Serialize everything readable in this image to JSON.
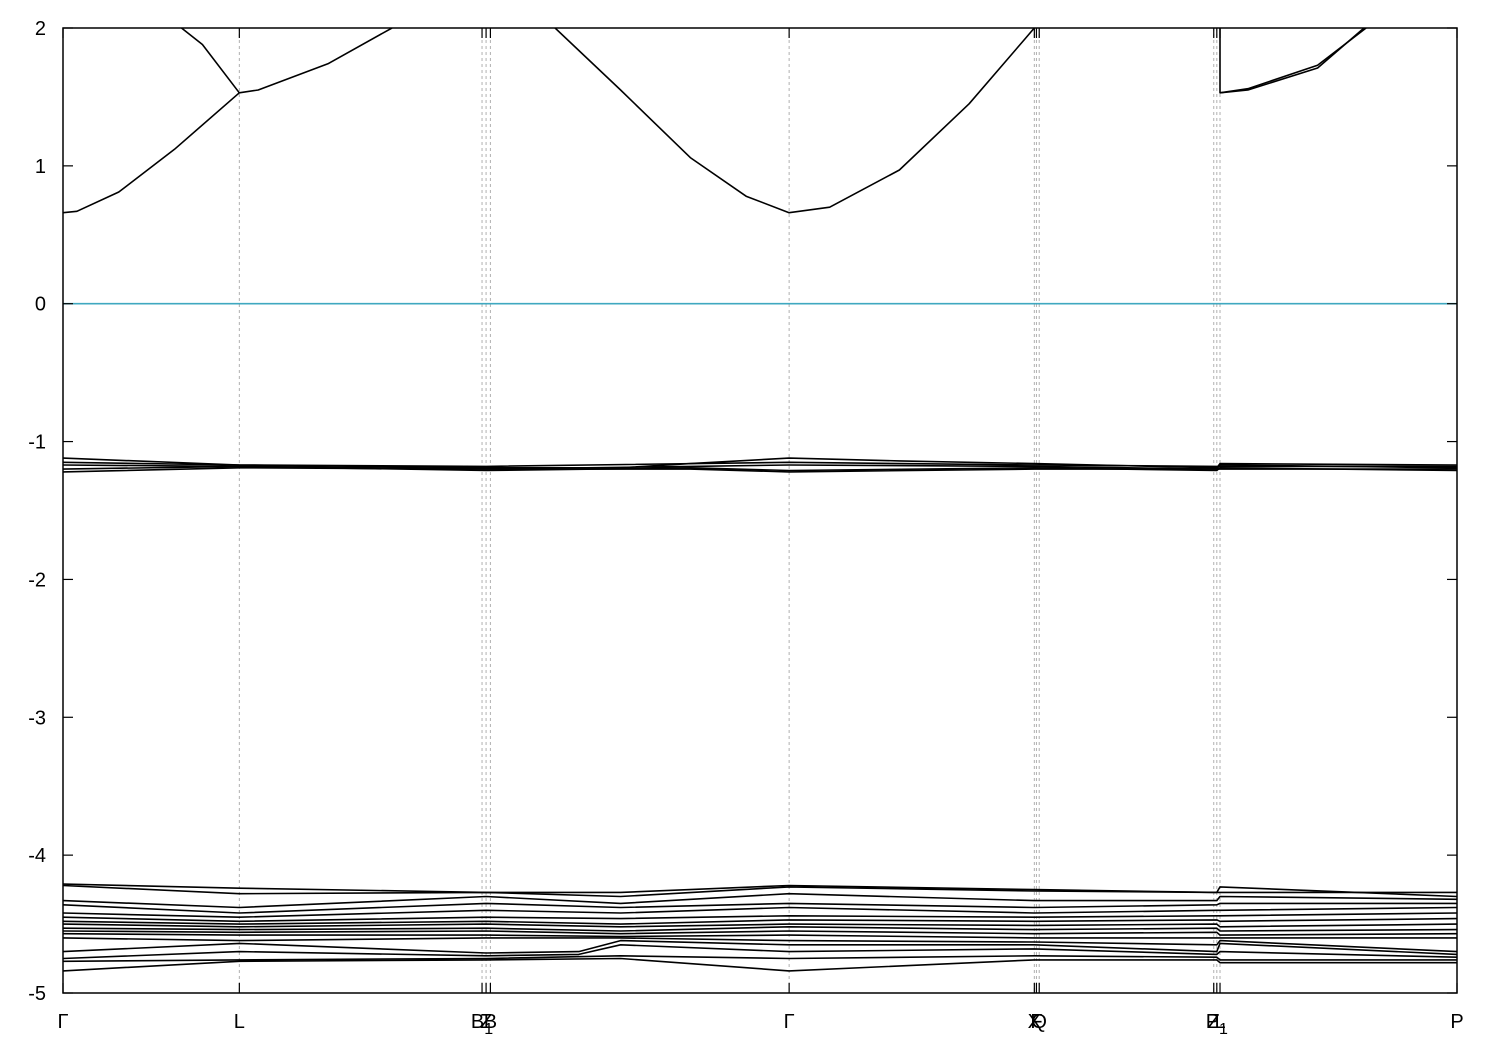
{
  "chart_data": {
    "type": "line",
    "title": "",
    "xlabel": "",
    "ylabel": "",
    "ylim": [
      -5,
      2
    ],
    "xlim": [
      0,
      1
    ],
    "grid": "vertical-dashed-at-high-symmetry-points",
    "legend": "none",
    "y_ticks": [
      {
        "value": 2,
        "label": "2"
      },
      {
        "value": 1,
        "label": "1"
      },
      {
        "value": 0,
        "label": "0"
      },
      {
        "value": -1,
        "label": "-1"
      },
      {
        "value": -2,
        "label": "-2"
      },
      {
        "value": -3,
        "label": "-3"
      },
      {
        "value": -4,
        "label": "-4"
      },
      {
        "value": -5,
        "label": "-5"
      }
    ],
    "high_symmetry_points": [
      {
        "x": 0.0,
        "label": "Γ"
      },
      {
        "x": 0.1265,
        "label": "L"
      },
      {
        "x": 0.3006,
        "label": "B1"
      },
      {
        "x": 0.3035,
        "label": "Z"
      },
      {
        "x": 0.3066,
        "label": "B"
      },
      {
        "x": 0.5209,
        "label": "Γ"
      },
      {
        "x": 0.6968,
        "label": "X"
      },
      {
        "x": 0.6983,
        "label": "F"
      },
      {
        "x": 0.7003,
        "label": "Q"
      },
      {
        "x": 0.8255,
        "label": "Z"
      },
      {
        "x": 0.8277,
        "label": "P1"
      },
      {
        "x": 0.83,
        "label": "L"
      },
      {
        "x": 1.0,
        "label": "P"
      }
    ],
    "fermi_level": {
      "value": 0,
      "color": "#3fa8c0"
    },
    "line_color": "#000000",
    "series": [
      {
        "points": [
          [
            0,
            0.66
          ],
          [
            0.01,
            0.67
          ],
          [
            0.04,
            0.81
          ],
          [
            0.08,
            1.12
          ],
          [
            0.1265,
            1.53
          ],
          [
            0.14,
            1.55
          ],
          [
            0.19,
            1.74
          ],
          [
            0.236,
            2.0
          ]
        ]
      },
      {
        "points": [
          [
            0.085,
            2.0
          ],
          [
            0.1,
            1.88
          ],
          [
            0.1265,
            1.53
          ]
        ]
      },
      {
        "points": [
          [
            0.353,
            2.0
          ],
          [
            0.4,
            1.55
          ],
          [
            0.45,
            1.06
          ],
          [
            0.49,
            0.78
          ],
          [
            0.5209,
            0.66
          ],
          [
            0.55,
            0.7
          ],
          [
            0.6,
            0.97
          ],
          [
            0.65,
            1.45
          ],
          [
            0.69,
            1.92
          ],
          [
            0.6968,
            2.0
          ]
        ]
      },
      {
        "points": [
          [
            0.83,
            2.0
          ],
          [
            0.83,
            1.53
          ],
          [
            0.85,
            1.56
          ],
          [
            0.9,
            1.73
          ],
          [
            0.9348,
            2.0
          ]
        ]
      },
      {
        "points": [
          [
            0.83,
            1.53
          ],
          [
            0.85,
            1.55
          ],
          [
            0.9,
            1.71
          ],
          [
            0.9333,
            2.0
          ]
        ]
      },
      {
        "points": [
          [
            0,
            -1.12
          ],
          [
            0.1265,
            -1.17
          ],
          [
            0.3035,
            -1.19
          ],
          [
            0.4,
            -1.19
          ],
          [
            0.45,
            -1.16
          ],
          [
            0.5209,
            -1.12
          ],
          [
            0.6,
            -1.14
          ],
          [
            0.6968,
            -1.16
          ],
          [
            0.8277,
            -1.19
          ],
          [
            0.83,
            -1.16
          ],
          [
            1.0,
            -1.17
          ]
        ]
      },
      {
        "points": [
          [
            0,
            -1.15
          ],
          [
            0.1265,
            -1.17
          ],
          [
            0.3035,
            -1.18
          ],
          [
            0.5209,
            -1.15
          ],
          [
            0.6968,
            -1.17
          ],
          [
            0.8277,
            -1.18
          ],
          [
            0.83,
            -1.18
          ],
          [
            1.0,
            -1.18
          ]
        ]
      },
      {
        "points": [
          [
            0,
            -1.17
          ],
          [
            0.1265,
            -1.18
          ],
          [
            0.3035,
            -1.2
          ],
          [
            0.45,
            -1.18
          ],
          [
            0.5209,
            -1.17
          ],
          [
            0.6968,
            -1.18
          ],
          [
            0.8277,
            -1.2
          ],
          [
            0.83,
            -1.17
          ],
          [
            1.0,
            -1.19
          ]
        ]
      },
      {
        "points": [
          [
            0,
            -1.2
          ],
          [
            0.1265,
            -1.18
          ],
          [
            0.3035,
            -1.21
          ],
          [
            0.45,
            -1.19
          ],
          [
            0.5209,
            -1.21
          ],
          [
            0.6968,
            -1.19
          ],
          [
            0.8277,
            -1.21
          ],
          [
            0.83,
            -1.19
          ],
          [
            1.0,
            -1.21
          ]
        ]
      },
      {
        "points": [
          [
            0,
            -1.22
          ],
          [
            0.1265,
            -1.19
          ],
          [
            0.3035,
            -1.2
          ],
          [
            0.45,
            -1.2
          ],
          [
            0.5209,
            -1.22
          ],
          [
            0.6968,
            -1.2
          ],
          [
            0.8277,
            -1.2
          ],
          [
            0.83,
            -1.2
          ],
          [
            1.0,
            -1.2
          ]
        ]
      },
      {
        "points": [
          [
            0,
            -4.21
          ],
          [
            0.1265,
            -4.24
          ],
          [
            0.3035,
            -4.27
          ],
          [
            0.4,
            -4.27
          ],
          [
            0.5209,
            -4.22
          ],
          [
            0.6968,
            -4.25
          ],
          [
            0.8277,
            -4.27
          ],
          [
            0.83,
            -4.27
          ],
          [
            1.0,
            -4.27
          ]
        ]
      },
      {
        "points": [
          [
            0,
            -4.22
          ],
          [
            0.1265,
            -4.28
          ],
          [
            0.3035,
            -4.27
          ],
          [
            0.4,
            -4.3
          ],
          [
            0.5209,
            -4.23
          ],
          [
            0.6968,
            -4.26
          ],
          [
            0.8277,
            -4.27
          ],
          [
            0.83,
            -4.23
          ],
          [
            1.0,
            -4.3
          ]
        ]
      },
      {
        "points": [
          [
            0,
            -4.33
          ],
          [
            0.1265,
            -4.38
          ],
          [
            0.3035,
            -4.3
          ],
          [
            0.4,
            -4.35
          ],
          [
            0.5209,
            -4.28
          ],
          [
            0.6968,
            -4.33
          ],
          [
            0.8277,
            -4.33
          ],
          [
            0.83,
            -4.3
          ],
          [
            1.0,
            -4.32
          ]
        ]
      },
      {
        "points": [
          [
            0,
            -4.36
          ],
          [
            0.1265,
            -4.42
          ],
          [
            0.3035,
            -4.35
          ],
          [
            0.4,
            -4.38
          ],
          [
            0.5209,
            -4.35
          ],
          [
            0.6968,
            -4.38
          ],
          [
            0.8277,
            -4.36
          ],
          [
            0.83,
            -4.35
          ],
          [
            1.0,
            -4.35
          ]
        ]
      },
      {
        "points": [
          [
            0,
            -4.42
          ],
          [
            0.1265,
            -4.45
          ],
          [
            0.3035,
            -4.4
          ],
          [
            0.4,
            -4.42
          ],
          [
            0.5209,
            -4.38
          ],
          [
            0.6968,
            -4.42
          ],
          [
            0.8277,
            -4.4
          ],
          [
            0.83,
            -4.4
          ],
          [
            1.0,
            -4.38
          ]
        ]
      },
      {
        "points": [
          [
            0,
            -4.45
          ],
          [
            0.1265,
            -4.48
          ],
          [
            0.3035,
            -4.45
          ],
          [
            0.4,
            -4.46
          ],
          [
            0.5209,
            -4.44
          ],
          [
            0.6968,
            -4.45
          ],
          [
            0.8277,
            -4.44
          ],
          [
            0.83,
            -4.44
          ],
          [
            1.0,
            -4.42
          ]
        ]
      },
      {
        "points": [
          [
            0,
            -4.48
          ],
          [
            0.1265,
            -4.5
          ],
          [
            0.3035,
            -4.48
          ],
          [
            0.4,
            -4.5
          ],
          [
            0.5209,
            -4.47
          ],
          [
            0.6968,
            -4.48
          ],
          [
            0.8277,
            -4.47
          ],
          [
            0.83,
            -4.48
          ],
          [
            1.0,
            -4.46
          ]
        ]
      },
      {
        "points": [
          [
            0,
            -4.5
          ],
          [
            0.1265,
            -4.52
          ],
          [
            0.3035,
            -4.5
          ],
          [
            0.4,
            -4.52
          ],
          [
            0.5209,
            -4.5
          ],
          [
            0.6968,
            -4.51
          ],
          [
            0.8277,
            -4.5
          ],
          [
            0.83,
            -4.52
          ],
          [
            1.0,
            -4.5
          ]
        ]
      },
      {
        "points": [
          [
            0,
            -4.53
          ],
          [
            0.1265,
            -4.54
          ],
          [
            0.3035,
            -4.53
          ],
          [
            0.4,
            -4.55
          ],
          [
            0.5209,
            -4.52
          ],
          [
            0.6968,
            -4.54
          ],
          [
            0.8277,
            -4.53
          ],
          [
            0.83,
            -4.55
          ],
          [
            1.0,
            -4.54
          ]
        ]
      },
      {
        "points": [
          [
            0,
            -4.55
          ],
          [
            0.1265,
            -4.56
          ],
          [
            0.3035,
            -4.55
          ],
          [
            0.4,
            -4.57
          ],
          [
            0.5209,
            -4.55
          ],
          [
            0.6968,
            -4.57
          ],
          [
            0.8277,
            -4.56
          ],
          [
            0.83,
            -4.58
          ],
          [
            1.0,
            -4.57
          ]
        ]
      },
      {
        "points": [
          [
            0,
            -4.57
          ],
          [
            0.1265,
            -4.58
          ],
          [
            0.3035,
            -4.58
          ],
          [
            0.4,
            -4.59
          ],
          [
            0.5209,
            -4.58
          ],
          [
            0.6968,
            -4.6
          ],
          [
            0.8277,
            -4.6
          ],
          [
            0.83,
            -4.6
          ],
          [
            1.0,
            -4.6
          ]
        ]
      },
      {
        "points": [
          [
            0,
            -4.6
          ],
          [
            0.1265,
            -4.62
          ],
          [
            0.3035,
            -4.6
          ],
          [
            0.4,
            -4.6
          ],
          [
            0.5209,
            -4.62
          ],
          [
            0.6968,
            -4.63
          ],
          [
            0.8277,
            -4.65
          ],
          [
            0.83,
            -4.62
          ],
          [
            1.0,
            -4.7
          ]
        ]
      },
      {
        "points": [
          [
            0,
            -4.7
          ],
          [
            0.1265,
            -4.64
          ],
          [
            0.3035,
            -4.71
          ],
          [
            0.37,
            -4.7
          ],
          [
            0.4,
            -4.62
          ],
          [
            0.5209,
            -4.65
          ],
          [
            0.6968,
            -4.65
          ],
          [
            0.8277,
            -4.7
          ],
          [
            0.83,
            -4.64
          ],
          [
            1.0,
            -4.72
          ]
        ]
      },
      {
        "points": [
          [
            0,
            -4.75
          ],
          [
            0.1265,
            -4.7
          ],
          [
            0.3035,
            -4.73
          ],
          [
            0.37,
            -4.72
          ],
          [
            0.4,
            -4.65
          ],
          [
            0.5209,
            -4.7
          ],
          [
            0.6968,
            -4.68
          ],
          [
            0.8277,
            -4.72
          ],
          [
            0.83,
            -4.7
          ],
          [
            1.0,
            -4.74
          ]
        ]
      },
      {
        "points": [
          [
            0,
            -4.77
          ],
          [
            0.1265,
            -4.76
          ],
          [
            0.3035,
            -4.75
          ],
          [
            0.4,
            -4.73
          ],
          [
            0.5209,
            -4.75
          ],
          [
            0.6968,
            -4.73
          ],
          [
            0.8277,
            -4.74
          ],
          [
            0.83,
            -4.76
          ],
          [
            1.0,
            -4.76
          ]
        ]
      },
      {
        "points": [
          [
            0,
            -4.84
          ],
          [
            0.1265,
            -4.77
          ],
          [
            0.3035,
            -4.76
          ],
          [
            0.4,
            -4.75
          ],
          [
            0.5209,
            -4.84
          ],
          [
            0.6968,
            -4.76
          ],
          [
            0.8277,
            -4.76
          ],
          [
            0.83,
            -4.78
          ],
          [
            1.0,
            -4.78
          ]
        ]
      }
    ]
  }
}
